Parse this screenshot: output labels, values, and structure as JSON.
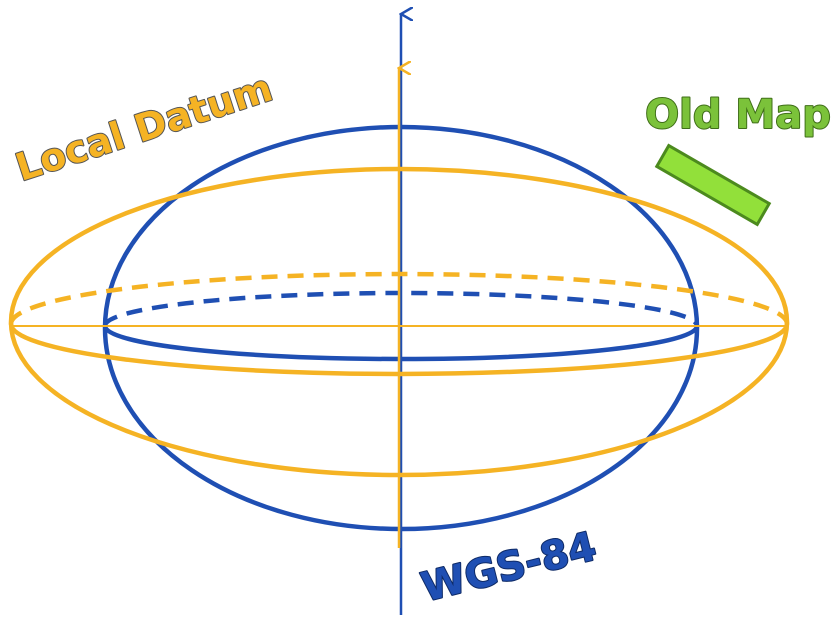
{
  "labels": {
    "local_datum": "Local Datum",
    "old_map": "Old Map",
    "wgs84": "WGS-84"
  }
}
